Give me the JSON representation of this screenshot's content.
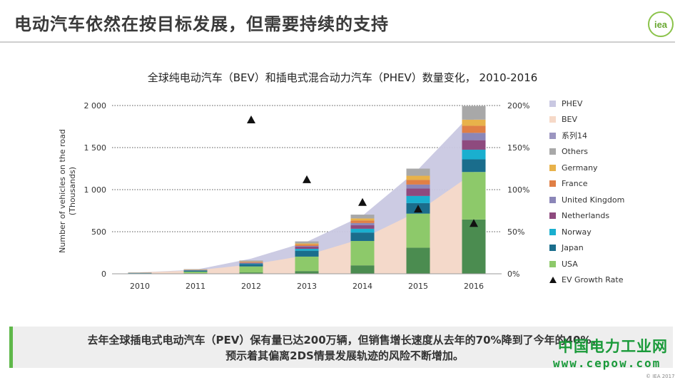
{
  "header": {
    "title": "电动汽车依然在按目标发展，但需要持续的支持",
    "logo_text": "iea"
  },
  "callout": {
    "line1": "去年全球插电式电动汽车（PEV）保有量已达200万辆，但销售增长速度从去年的70%降到了今年的40%，",
    "line2": "预示着其偏离2DS情景发展轨迹的风险不断增加。"
  },
  "watermark": {
    "cn": "中国电力工业网",
    "url": "www.cepow.com"
  },
  "copyright": "© IEA 2017",
  "colors": {
    "PHEV": "#c9c8e2",
    "BEV": "#f6d9c8",
    "系列14": "#9b95c0",
    "Others": "#a8a8a8",
    "Germany": "#e8b24a",
    "France": "#e07f45",
    "United Kingdom": "#8b86b8",
    "Netherlands": "#8e4a7e",
    "Norway": "#1aafcf",
    "Japan": "#1a6d8c",
    "USA": "#8dc96a",
    "China": "#4b8c50"
  },
  "chart_data": {
    "type": "bar",
    "title": "全球纯电动汽车（BEV）和插电式混合动力汽车（PHEV）数量变化， 2010-2016",
    "ylabel": "Number of vehicles on the road (Thousands)",
    "ylim": [
      0,
      2000
    ],
    "y2lim": [
      0,
      2.0
    ],
    "yticks": [
      "0",
      "500",
      "1 000",
      "1 500",
      "2 000"
    ],
    "y2ticks": [
      "0%",
      "50%",
      "100%",
      "150%",
      "200%"
    ],
    "grid": true,
    "legend_position": "right",
    "categories": [
      "2010",
      "2011",
      "2012",
      "2013",
      "2014",
      "2015",
      "2016"
    ],
    "stack_series": [
      {
        "name": "",
        "key": "China",
        "values": [
          1,
          7,
          16,
          32,
          100,
          310,
          645
        ]
      },
      {
        "name": "USA",
        "key": "USA",
        "values": [
          4,
          18,
          71,
          172,
          290,
          405,
          565
        ]
      },
      {
        "name": "Japan",
        "key": "Japan",
        "values": [
          3,
          13,
          29,
          70,
          100,
          125,
          150
        ]
      },
      {
        "name": "Norway",
        "key": "Norway",
        "values": [
          1,
          2,
          6,
          22,
          45,
          85,
          115
        ]
      },
      {
        "name": "Netherlands",
        "key": "Netherlands",
        "values": [
          0,
          1,
          6,
          28,
          43,
          88,
          113
        ]
      },
      {
        "name": "United Kingdom",
        "key": "United Kingdom",
        "values": [
          1,
          1,
          4,
          7,
          25,
          48,
          87
        ]
      },
      {
        "name": "France",
        "key": "France",
        "values": [
          1,
          3,
          9,
          17,
          30,
          54,
          84
        ]
      },
      {
        "name": "Germany",
        "key": "Germany",
        "values": [
          1,
          2,
          5,
          12,
          25,
          50,
          73
        ]
      },
      {
        "name": "Others",
        "key": "Others",
        "values": [
          5,
          8,
          12,
          25,
          45,
          85,
          162
        ]
      }
    ],
    "area_series": [
      {
        "name": "BEV",
        "key": "BEV",
        "values": [
          17,
          40,
          110,
          220,
          420,
          740,
          1200
        ]
      },
      {
        "name": "PHEV",
        "key": "PHEV",
        "values": [
          17,
          48,
          180,
          380,
          690,
          1240,
          1930
        ]
      }
    ],
    "growth_rate": {
      "name": "EV Growth Rate",
      "values": [
        null,
        null,
        1.83,
        1.12,
        0.85,
        0.77,
        0.6
      ]
    },
    "legend": [
      "PHEV",
      "BEV",
      "系列14",
      "Others",
      "Germany",
      "France",
      "United Kingdom",
      "Netherlands",
      "Norway",
      "Japan",
      "USA",
      "EV Growth Rate"
    ]
  }
}
